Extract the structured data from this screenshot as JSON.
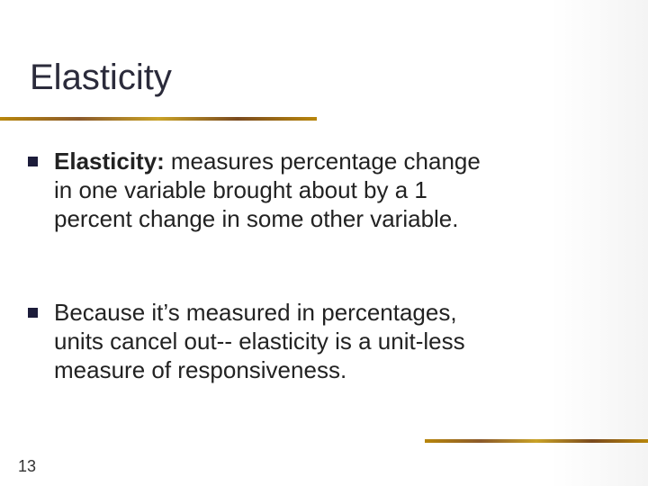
{
  "header": {
    "title": "Elasticity"
  },
  "bullets": [
    {
      "lead": "Elasticity:",
      "lines": [
        "measures percentage change",
        "in one variable brought about by a 1",
        "percent change in some other variable."
      ]
    },
    {
      "lead": null,
      "lines": [
        "Because it’s measured in percentages,",
        "units cancel out-- elasticity is a unit-less",
        "measure of responsiveness."
      ]
    }
  ],
  "footer": {
    "slide_number": "13"
  }
}
